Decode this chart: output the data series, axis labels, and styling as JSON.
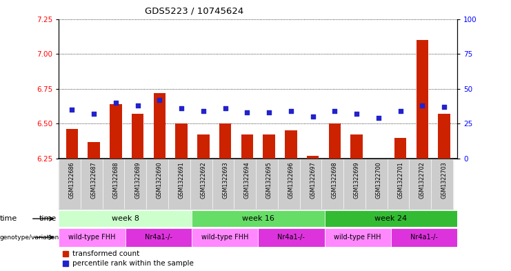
{
  "title": "GDS5223 / 10745624",
  "samples": [
    "GSM1322686",
    "GSM1322687",
    "GSM1322688",
    "GSM1322689",
    "GSM1322690",
    "GSM1322691",
    "GSM1322692",
    "GSM1322693",
    "GSM1322694",
    "GSM1322695",
    "GSM1322696",
    "GSM1322697",
    "GSM1322698",
    "GSM1322699",
    "GSM1322700",
    "GSM1322701",
    "GSM1322702",
    "GSM1322703"
  ],
  "red_values": [
    6.46,
    6.37,
    6.64,
    6.57,
    6.72,
    6.5,
    6.42,
    6.5,
    6.42,
    6.42,
    6.45,
    6.27,
    6.5,
    6.42,
    6.25,
    6.4,
    7.1,
    6.57
  ],
  "blue_values": [
    35,
    32,
    40,
    38,
    42,
    36,
    34,
    36,
    33,
    33,
    34,
    30,
    34,
    32,
    29,
    34,
    38,
    37
  ],
  "ylim_left": [
    6.25,
    7.25
  ],
  "ylim_right": [
    0,
    100
  ],
  "yticks_left": [
    6.25,
    6.5,
    6.75,
    7.0,
    7.25
  ],
  "yticks_right": [
    0,
    25,
    50,
    75,
    100
  ],
  "bar_color": "#cc2200",
  "dot_color": "#2222cc",
  "sample_bg_color": "#cccccc",
  "time_week8_color": "#ccffcc",
  "time_week16_color": "#66dd66",
  "time_week24_color": "#33bb33",
  "geno_wt_color": "#ff88ff",
  "geno_nr_color": "#dd33dd",
  "fig_width": 7.41,
  "fig_height": 3.93,
  "dpi": 100
}
